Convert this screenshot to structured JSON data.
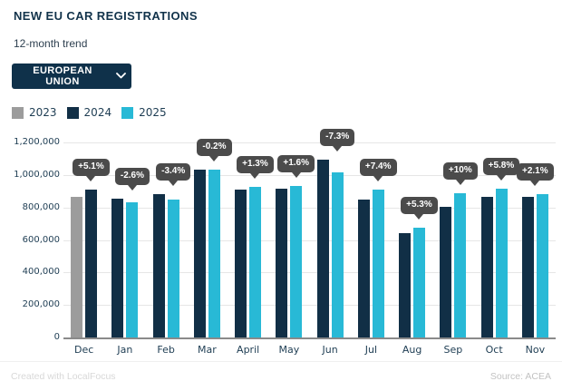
{
  "header": {
    "title": "NEW EU CAR REGISTRATIONS",
    "subtitle": "12-month trend"
  },
  "filter": {
    "label": "EUROPEAN UNION"
  },
  "footer": {
    "credit": "Created with LocalFocus",
    "source": "Source: ACEA"
  },
  "colors": {
    "navy": "#112f46",
    "cyan": "#28b9d6",
    "gray": "#9c9c9c",
    "badge_bg": "#4b4b4b",
    "badge_text": "#ffffff",
    "gridline": "#e6e6e6",
    "baseline": "#8a8a8a",
    "axis_text": "#1e3d53"
  },
  "chart_data": {
    "type": "bar",
    "title": "NEW EU CAR REGISTRATIONS",
    "subtitle": "12-month trend",
    "categories": [
      "Dec",
      "Jan",
      "Feb",
      "Mar",
      "April",
      "May",
      "Jun",
      "Jul",
      "Aug",
      "Sep",
      "Oct",
      "Nov"
    ],
    "series": [
      {
        "name": "2023",
        "color": "#9c9c9c",
        "values": [
          865000,
          null,
          null,
          null,
          null,
          null,
          null,
          null,
          null,
          null,
          null,
          null
        ]
      },
      {
        "name": "2024",
        "color": "#112f46",
        "values": [
          909000,
          856000,
          880000,
          1035000,
          912000,
          915000,
          1094000,
          848000,
          643000,
          805000,
          866000,
          866000
        ]
      },
      {
        "name": "2025",
        "color": "#28b9d6",
        "values": [
          null,
          834000,
          850000,
          1033000,
          924000,
          930000,
          1014000,
          911000,
          677000,
          886000,
          916000,
          884000
        ]
      }
    ],
    "point_labels": [
      "+5.1%",
      "-2.6%",
      "-3.4%",
      "-0.2%",
      "+1.3%",
      "+1.6%",
      "-7.3%",
      "+7.4%",
      "+5.3%",
      "+10%",
      "+5.8%",
      "+2.1%"
    ],
    "xlabel": "",
    "ylabel": "",
    "ylim": [
      0,
      1200000
    ],
    "ytick_labels": [
      "1,200,000",
      "1,000,000",
      "800,000",
      "600,000",
      "400,000",
      "200,000",
      "0"
    ],
    "grid": true,
    "legend_position": "top-left"
  }
}
